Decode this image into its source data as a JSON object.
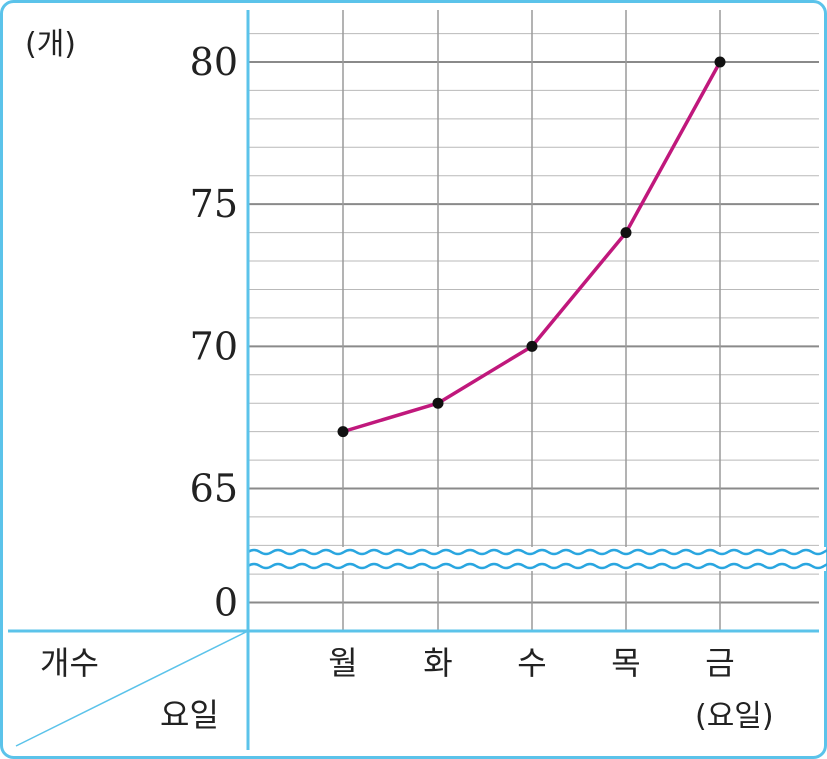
{
  "chart_data": {
    "type": "line",
    "title": "",
    "y_unit": "(개)",
    "x_unit": "(요일)",
    "corner_row_label": "개수",
    "corner_col_label": "요일",
    "categories": [
      "월",
      "화",
      "수",
      "목",
      "금"
    ],
    "series": [
      {
        "values": [
          67,
          68,
          70,
          74,
          80
        ]
      }
    ],
    "y_ticks": [
      {
        "value": 80,
        "label": "80"
      },
      {
        "value": 75,
        "label": "75"
      },
      {
        "value": 70,
        "label": "70"
      },
      {
        "value": 65,
        "label": "65"
      },
      {
        "value": 0,
        "label": "0"
      }
    ],
    "ylim": [
      63,
      81.5
    ],
    "axis_break": "between 0 and 65 (wavy line)",
    "grid": true,
    "colors": {
      "line": "#c0187c",
      "point": "#111111",
      "frame": "#5bc3ea",
      "grid": "#9a9a9a"
    }
  }
}
